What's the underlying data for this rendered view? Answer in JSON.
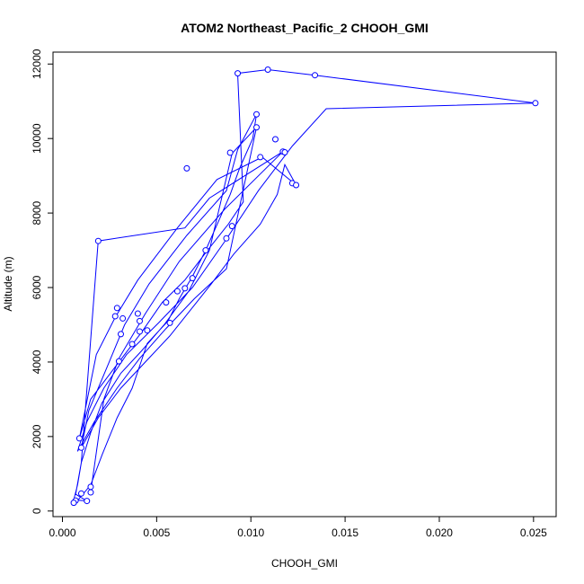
{
  "chart_data": {
    "type": "line",
    "title": "ATOM2 Northeast_Pacific_2 CHOOH_GMI",
    "xlabel": "CHOOH_GMI",
    "ylabel": "Altitude (m)",
    "xlim": [
      -0.0005,
      0.0262
    ],
    "ylim": [
      -150,
      12320
    ],
    "x_ticks": [
      0.0,
      0.005,
      0.01,
      0.015,
      0.02,
      0.025
    ],
    "x_tick_labels": [
      "0.000",
      "0.005",
      "0.010",
      "0.015",
      "0.020",
      "0.025"
    ],
    "y_ticks": [
      0,
      2000,
      4000,
      6000,
      8000,
      10000,
      12000
    ],
    "y_tick_labels": [
      "0",
      "2000",
      "4000",
      "6000",
      "8000",
      "10000",
      "12000"
    ],
    "series_color": "#0000ff",
    "grid": false,
    "legend": "none",
    "series": [
      {
        "x": [
          0.0007,
          0.0015,
          0.0021,
          0.0029,
          0.0037,
          0.0041,
          0.0045,
          0.0056,
          0.0062,
          0.0069,
          0.0076,
          0.0083,
          0.0089,
          0.0094,
          0.0101,
          0.0103,
          0.0093,
          0.0087,
          0.0066,
          0.0046,
          0.0033,
          0.0024,
          0.0014,
          0.001,
          0.0019,
          0.0031,
          0.0044,
          0.0057,
          0.0068,
          0.0079,
          0.0091,
          0.0105,
          0.0114,
          0.0118,
          0.0124,
          0.0106,
          0.0082,
          0.0061,
          0.004,
          0.0028,
          0.0018,
          0.0009,
          0.0015,
          0.003,
          0.0042,
          0.0053,
          0.0065,
          0.0077,
          0.0088,
          0.0096,
          0.0093,
          0.0109,
          0.0134,
          0.0251,
          0.014,
          0.0122,
          0.0104,
          0.0087,
          0.0069,
          0.0051,
          0.0034,
          0.0022,
          0.0013,
          0.0008,
          0.0017,
          0.0029,
          0.0041,
          0.0055,
          0.007,
          0.0087,
          0.0103,
          0.009,
          0.0078,
          0.0067,
          0.0054,
          0.0042,
          0.0031,
          0.0021,
          0.0015,
          0.001,
          0.0007,
          0.0013,
          0.0006,
          0.0008,
          0.001,
          0.0019,
          0.0065,
          0.0078,
          0.0117,
          0.0086,
          0.0062,
          0.0044,
          0.003,
          0.0022,
          0.0015
        ],
        "y": [
          220,
          700,
          1500,
          2500,
          3300,
          3900,
          4500,
          5100,
          5700,
          6300,
          7000,
          7800,
          8500,
          9200,
          10000,
          10650,
          9700,
          8600,
          7400,
          6100,
          5000,
          3900,
          2700,
          1700,
          2500,
          3300,
          4000,
          4700,
          5400,
          6100,
          6900,
          7700,
          8500,
          9300,
          8750,
          9500,
          8900,
          7600,
          6200,
          5200,
          4200,
          1950,
          3000,
          4000,
          4800,
          5600,
          6200,
          7000,
          7700,
          8300,
          11750,
          11850,
          11700,
          10950,
          10800,
          9800,
          8600,
          7300,
          6000,
          5050,
          4200,
          3300,
          2400,
          1600,
          2400,
          3300,
          4100,
          4900,
          5700,
          6500,
          10300,
          9600,
          7000,
          5900,
          5000,
          4300,
          3700,
          2900,
          2100,
          1300,
          450,
          270,
          300,
          700,
          1300,
          7250,
          7600,
          8400,
          9650,
          8100,
          6700,
          5300,
          4100,
          3000,
          500
        ]
      }
    ],
    "markers": {
      "x": [
        0.0251,
        0.0134,
        0.0109,
        0.0093,
        0.0103,
        0.0103,
        0.0113,
        0.0105,
        0.0117,
        0.0118,
        0.0122,
        0.0124,
        0.0089,
        0.0066,
        0.0076,
        0.0087,
        0.009,
        0.0019,
        0.0069,
        0.0065,
        0.0061,
        0.0055,
        0.0057,
        0.0029,
        0.0028,
        0.0032,
        0.004,
        0.0041,
        0.0041,
        0.0045,
        0.0031,
        0.0037,
        0.003,
        0.0009,
        0.001,
        0.0015,
        0.0015,
        0.001,
        0.0013,
        0.0007,
        0.0006
      ],
      "y": [
        10950,
        11700,
        11850,
        11750,
        10650,
        10300,
        9980,
        9500,
        9650,
        9630,
        8800,
        8750,
        9620,
        9200,
        7000,
        7320,
        7650,
        7250,
        6250,
        5980,
        5900,
        5600,
        5050,
        5450,
        5230,
        5170,
        5300,
        5100,
        4820,
        4850,
        4750,
        4480,
        4020,
        1950,
        1700,
        650,
        500,
        470,
        270,
        280,
        220
      ]
    }
  }
}
